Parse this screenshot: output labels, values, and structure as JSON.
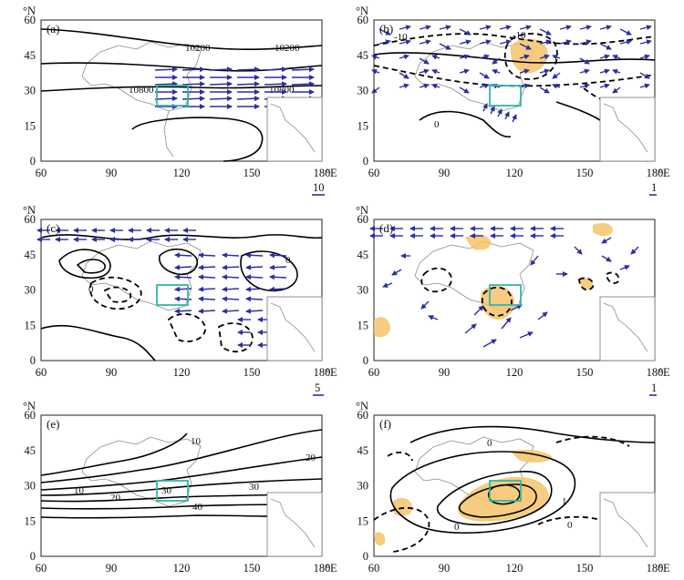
{
  "axes": {
    "lat_unit": "°N",
    "lon_unit": "°E",
    "lat_ticks": [
      "0",
      "15",
      "30",
      "45",
      "60"
    ],
    "lon_ticks": [
      "60",
      "90",
      "120",
      "150",
      "180"
    ]
  },
  "panels": [
    {
      "id": "a",
      "label": "(a)",
      "contours": [
        "10200",
        "10200",
        "10800",
        "10800"
      ],
      "vector_scale": "10"
    },
    {
      "id": "b",
      "label": "(b)",
      "contours": [
        "-10",
        "-10",
        "0"
      ],
      "vector_scale": "1"
    },
    {
      "id": "c",
      "label": "(c)",
      "contours": [
        "0",
        "0"
      ],
      "vector_scale": "5"
    },
    {
      "id": "d",
      "label": "(d)",
      "contours": [],
      "vector_scale": "1"
    },
    {
      "id": "e",
      "label": "(e)",
      "contours": [
        "10",
        "10",
        "20",
        "20",
        "30",
        "30",
        "40"
      ],
      "vector_scale": ""
    },
    {
      "id": "f",
      "label": "(f)",
      "contours": [
        "0",
        "0",
        "0",
        "1"
      ],
      "vector_scale": ""
    }
  ],
  "colors": {
    "vectors": "#2b2fa0",
    "box": "#2fb7a8",
    "stipple": "#cf2020",
    "shading": "#f4c36a"
  }
}
